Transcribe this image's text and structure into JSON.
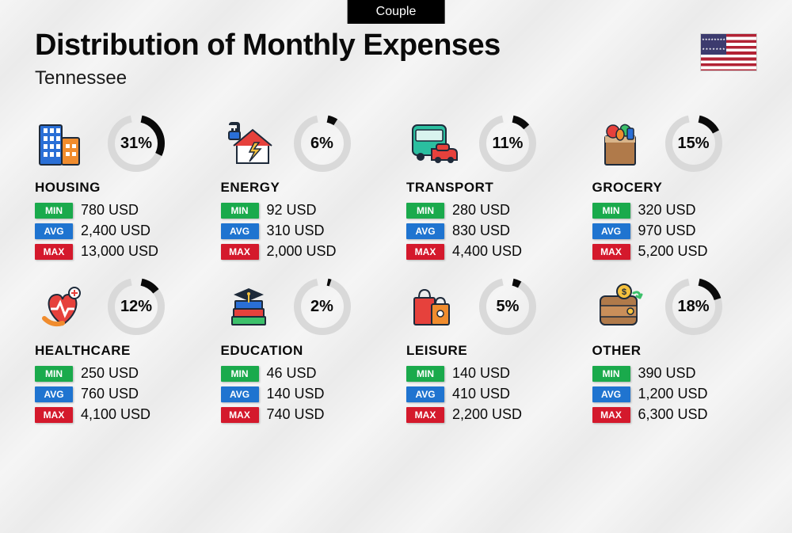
{
  "badge": "Couple",
  "title": "Distribution of Monthly Expenses",
  "subtitle": "Tennessee",
  "currency": "USD",
  "stat_labels": {
    "min": "MIN",
    "avg": "AVG",
    "max": "MAX"
  },
  "stat_colors": {
    "min": "#1aaa4c",
    "avg": "#1f74d0",
    "max": "#d4192c"
  },
  "donut": {
    "size": 72,
    "stroke": 9,
    "bg": "#d9d9d9",
    "fg": "#0a0a0a",
    "gap_angle_deg": 24
  },
  "categories": [
    {
      "key": "housing",
      "name": "HOUSING",
      "pct": 31,
      "min": "780",
      "avg": "2,400",
      "max": "13,000",
      "icon": "buildings"
    },
    {
      "key": "energy",
      "name": "ENERGY",
      "pct": 6,
      "min": "92",
      "avg": "310",
      "max": "2,000",
      "icon": "energy-house"
    },
    {
      "key": "transport",
      "name": "TRANSPORT",
      "pct": 11,
      "min": "280",
      "avg": "830",
      "max": "4,400",
      "icon": "bus-car"
    },
    {
      "key": "grocery",
      "name": "GROCERY",
      "pct": 15,
      "min": "320",
      "avg": "970",
      "max": "5,200",
      "icon": "grocery-bag"
    },
    {
      "key": "healthcare",
      "name": "HEALTHCARE",
      "pct": 12,
      "min": "250",
      "avg": "760",
      "max": "4,100",
      "icon": "health-heart"
    },
    {
      "key": "education",
      "name": "EDUCATION",
      "pct": 2,
      "min": "46",
      "avg": "140",
      "max": "740",
      "icon": "grad-books"
    },
    {
      "key": "leisure",
      "name": "LEISURE",
      "pct": 5,
      "min": "140",
      "avg": "410",
      "max": "2,200",
      "icon": "shopping-bags"
    },
    {
      "key": "other",
      "name": "OTHER",
      "pct": 18,
      "min": "390",
      "avg": "1,200",
      "max": "6,300",
      "icon": "wallet"
    }
  ],
  "icon_palette": {
    "blue": "#2a6fd6",
    "orange": "#f08c2e",
    "red": "#e6413c",
    "green": "#3cc06a",
    "yellow": "#f6c23e",
    "teal": "#2bbfa0",
    "brown": "#b07a4a",
    "dark": "#1e2a3a",
    "purple": "#6a4fb0",
    "pink": "#e86aa6"
  }
}
